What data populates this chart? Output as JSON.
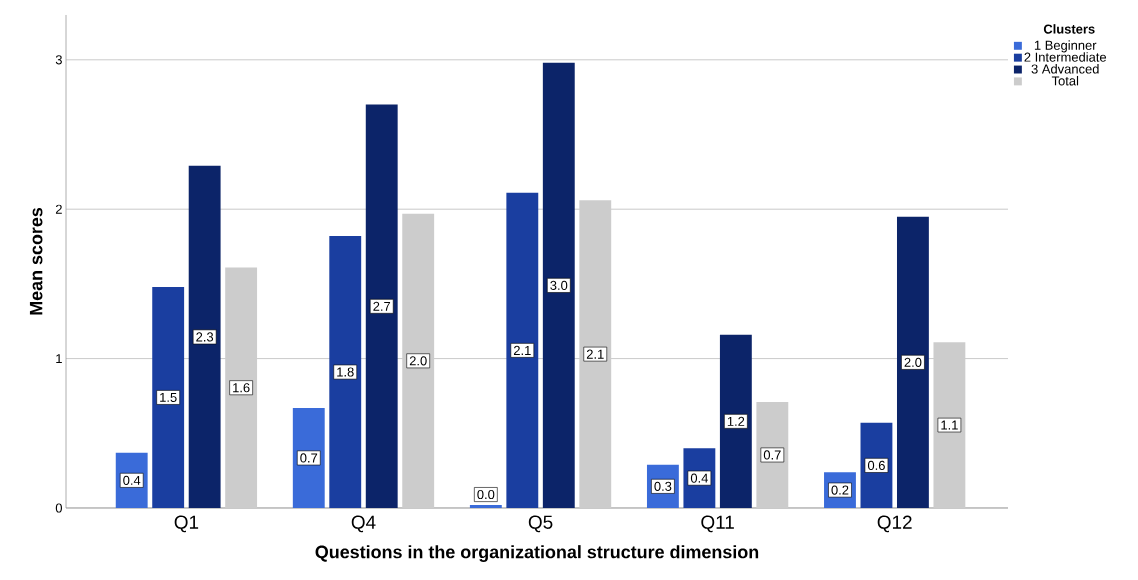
{
  "chart_data": {
    "type": "bar",
    "xlabel": "Questions in the organizational structure dimension",
    "ylabel": "Mean scores",
    "legend_title": "Clusters",
    "categories": [
      "Q1",
      "Q4",
      "Q5",
      "Q11",
      "Q12"
    ],
    "series": [
      {
        "name": "1 Beginner",
        "color": "#3a6bd9",
        "values": [
          0.37,
          0.67,
          0.02,
          0.29,
          0.24
        ],
        "value_labels": [
          "0.4",
          "0.7",
          "0.0",
          "0.3",
          "0.2"
        ]
      },
      {
        "name": "2 Intermediate",
        "color": "#1a3ea0",
        "values": [
          1.48,
          1.82,
          2.11,
          0.4,
          0.57
        ],
        "value_labels": [
          "1.5",
          "1.8",
          "2.1",
          "0.4",
          "0.6"
        ]
      },
      {
        "name": "3 Advanced",
        "color": "#0c2469",
        "values": [
          2.29,
          2.7,
          2.98,
          1.16,
          1.95
        ],
        "value_labels": [
          "2.3",
          "2.7",
          "3.0",
          "1.2",
          "2.0"
        ]
      },
      {
        "name": "Total",
        "color": "#cccccc",
        "values": [
          1.61,
          1.97,
          2.06,
          0.71,
          1.11
        ],
        "value_labels": [
          "1.6",
          "2.0",
          "2.1",
          "0.7",
          "1.1"
        ]
      }
    ],
    "ylim": [
      0,
      3.3
    ],
    "yticks": [
      0,
      1,
      2,
      3
    ],
    "grid": "y",
    "legend": "top right"
  }
}
